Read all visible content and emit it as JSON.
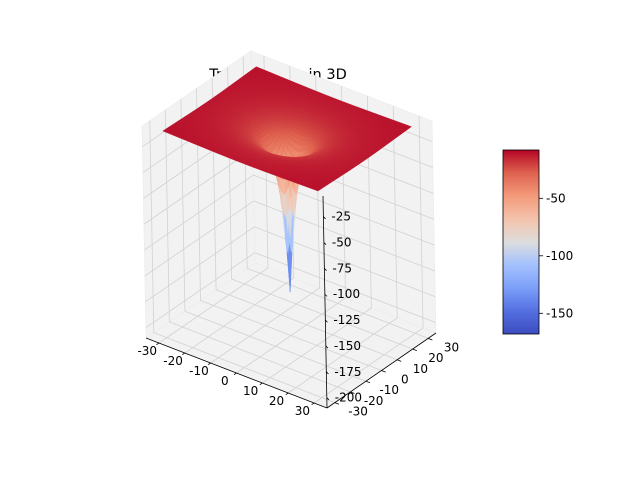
{
  "chart_data": {
    "type": "surface3d",
    "title": "True function in 3D",
    "xlabel": "",
    "ylabel": "",
    "zlabel": "",
    "grid": true,
    "x_ticks": [
      -30,
      -20,
      -10,
      0,
      10,
      20,
      30
    ],
    "y_ticks": [
      -30,
      -20,
      -10,
      0,
      10,
      20,
      30
    ],
    "z_ticks": [
      -25,
      -50,
      -75,
      -100,
      -125,
      -150,
      -175,
      -200
    ],
    "x_range": [
      -35,
      35
    ],
    "y_range": [
      -35,
      35
    ],
    "z_range": [
      -210,
      -5
    ],
    "surface": {
      "plateau_z": -8,
      "min_z": -168,
      "min_location": [
        0,
        0
      ],
      "shape": "radially symmetric funnel"
    },
    "colorbar": {
      "colormap": "coolwarm",
      "range": [
        -168,
        -8
      ],
      "ticks": [
        -50,
        -100,
        -150
      ]
    }
  }
}
